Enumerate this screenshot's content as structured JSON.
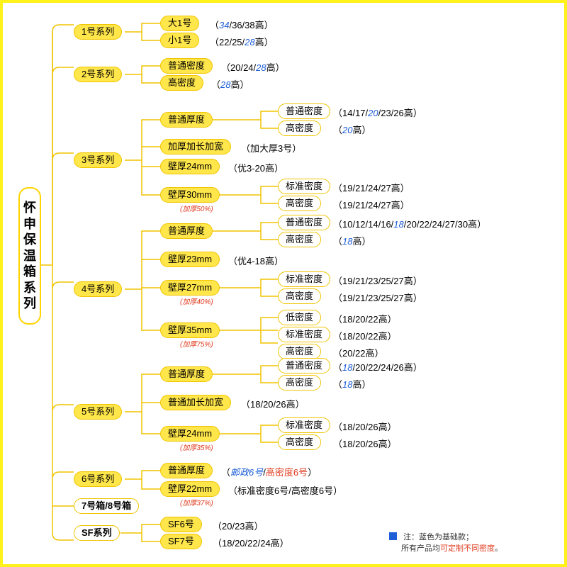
{
  "colors": {
    "page_bg": "#fff21a",
    "canvas_bg": "#ffffff",
    "pill_yellow_bg": "#ffe64a",
    "pill_border": "#f0c400",
    "blue": "#1e5fd8",
    "red": "#e03a1e",
    "wire": "#f0c400"
  },
  "root": "怀申保温箱系列",
  "footnote_line1": "注：蓝色为基础款；",
  "footnote_line2": "所有产品均可定制不同密度。",
  "footnote_hl": "可定制不同密度",
  "series": {
    "s1": {
      "label": "1号系列",
      "a": {
        "label": "大1号",
        "detail": "（<b>34</b>/36/38高）"
      },
      "b": {
        "label": "小1号",
        "detail": "（22/25/<b>28</b>高）"
      }
    },
    "s2": {
      "label": "2号系列",
      "a": {
        "label": "普通密度",
        "detail": "（20/24/<b>28</b>高）"
      },
      "b": {
        "label": "高密度",
        "detail": "（<b>28</b>高）"
      }
    },
    "s3": {
      "label": "3号系列",
      "a": {
        "label": "普通厚度",
        "c1": {
          "label": "普通密度",
          "detail": "（14/17/<b>20</b>/23/26高）"
        },
        "c2": {
          "label": "高密度",
          "detail": "（<b>20</b>高）"
        }
      },
      "b": {
        "label": "加厚加长加宽",
        "detail": "（加大厚3号）"
      },
      "c": {
        "label": "壁厚24mm",
        "detail": "（优3-20高）"
      },
      "d": {
        "label": "壁厚30mm",
        "note": "(加厚50%)",
        "c1": {
          "label": "标准密度",
          "detail": "（19/21/24/27高）"
        },
        "c2": {
          "label": "高密度",
          "detail": "（19/21/24/27高）"
        }
      }
    },
    "s4": {
      "label": "4号系列",
      "a": {
        "label": "普通厚度",
        "c1": {
          "label": "普通密度",
          "detail": "（10/12/14/16/<b>18</b>/20/22/24/27/30高）"
        },
        "c2": {
          "label": "高密度",
          "detail": "（<b>18</b>高）"
        }
      },
      "b": {
        "label": "壁厚23mm",
        "detail": "（优4-18高）"
      },
      "c": {
        "label": "壁厚27mm",
        "note": "(加厚40%)",
        "c1": {
          "label": "标准密度",
          "detail": "（19/21/23/25/27高）"
        },
        "c2": {
          "label": "高密度",
          "detail": "（19/21/23/25/27高）"
        }
      },
      "d": {
        "label": "壁厚35mm",
        "note": "(加厚75%)",
        "c1": {
          "label": "低密度",
          "detail": "（18/20/22高）"
        },
        "c2": {
          "label": "标准密度",
          "detail": "（18/20/22高）"
        },
        "c3": {
          "label": "高密度",
          "detail": "（20/22高）"
        }
      }
    },
    "s5": {
      "label": "5号系列",
      "a": {
        "label": "普通厚度",
        "c1": {
          "label": "普通密度",
          "detail": "（<b>18</b>/20/22/24/26高）"
        },
        "c2": {
          "label": "高密度",
          "detail": "（<b>18</b>高）"
        }
      },
      "b": {
        "label": "普通加长加宽",
        "detail": "（18/20/26高）"
      },
      "c": {
        "label": "壁厚24mm",
        "note": "(加厚35%)",
        "c1": {
          "label": "标准密度",
          "detail": "（18/20/26高）"
        },
        "c2": {
          "label": "高密度",
          "detail": "（18/20/26高）"
        }
      }
    },
    "s6": {
      "label": "6号系列",
      "a": {
        "label": "普通厚度",
        "detail": "（<b>邮政6号</b>/<r>高密度6号</r>）"
      },
      "b": {
        "label": "壁厚22mm",
        "note": "(加厚37%)",
        "detail": "（标准密度6号/高密度6号）"
      }
    },
    "s7": {
      "label": "7号箱/8号箱"
    },
    "sf": {
      "label": "SF系列",
      "a": {
        "label": "SF6号",
        "detail": "（20/23高）"
      },
      "b": {
        "label": "SF7号",
        "detail": "（18/20/22/24高）"
      }
    }
  }
}
